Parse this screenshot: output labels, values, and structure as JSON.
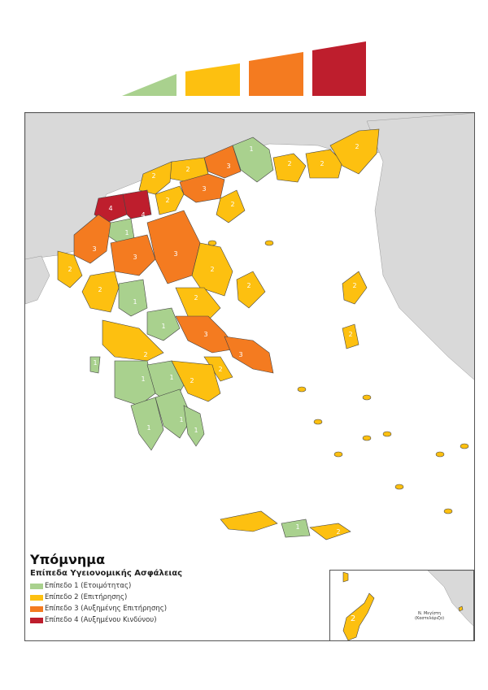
{
  "colors": {
    "level1": "#a9d18e",
    "level2": "#fdc010",
    "level3": "#f47b20",
    "level4": "#be1e2d",
    "land_outside": "#d9d9d9",
    "sea": "#ffffff"
  },
  "legend": {
    "title": "Υπόμνημα",
    "subtitle": "Επίπεδα Υγειονομικής Ασφάλειας",
    "items": [
      {
        "level": 1,
        "label": "Επίπεδο 1 (Ετοιμότητας)",
        "color": "#a9d18e"
      },
      {
        "level": 2,
        "label": "Επίπεδο 2 (Επιτήρησης)",
        "color": "#fdc010"
      },
      {
        "level": 3,
        "label": "Επίπεδο 3 (Αυξημένης Επιτήρησης)",
        "color": "#f47b20"
      },
      {
        "level": 4,
        "label": "Επίπεδο 4 (Αυξημένου Κινδύνου)",
        "color": "#be1e2d"
      }
    ]
  },
  "inset": {
    "label_line1": "Ν. Μεγίστη",
    "label_line2": "(Καστελόριζο)",
    "rhodes_level": "2"
  },
  "regions": [
    {
      "level": "1",
      "color": "#a9d18e"
    },
    {
      "level": "2",
      "color": "#fdc010"
    },
    {
      "level": "2",
      "color": "#fdc010"
    },
    {
      "level": "2",
      "color": "#fdc010"
    },
    {
      "level": "3",
      "color": "#f47b20"
    },
    {
      "level": "2",
      "color": "#fdc010"
    },
    {
      "level": "2",
      "color": "#fdc010"
    },
    {
      "level": "3",
      "color": "#f47b20"
    },
    {
      "level": "2",
      "color": "#fdc010"
    },
    {
      "level": "4",
      "color": "#be1e2d"
    },
    {
      "level": "4",
      "color": "#be1e2d"
    },
    {
      "level": "2",
      "color": "#fdc010"
    },
    {
      "level": "1",
      "color": "#a9d18e"
    },
    {
      "level": "3",
      "color": "#f47b20"
    },
    {
      "level": "3",
      "color": "#f47b20"
    },
    {
      "level": "3",
      "color": "#f47b20"
    },
    {
      "level": "2",
      "color": "#fdc010"
    },
    {
      "level": "2",
      "color": "#fdc010"
    },
    {
      "level": "1",
      "color": "#a9d18e"
    },
    {
      "level": "2",
      "color": "#fdc010"
    },
    {
      "level": "1",
      "color": "#a9d18e"
    },
    {
      "level": "2",
      "color": "#fdc010"
    },
    {
      "level": "3",
      "color": "#f47b20"
    },
    {
      "level": "3",
      "color": "#f47b20"
    },
    {
      "level": "2",
      "color": "#fdc010"
    },
    {
      "level": "2",
      "color": "#fdc010"
    },
    {
      "level": "1",
      "color": "#a9d18e"
    },
    {
      "level": "1",
      "color": "#a9d18e"
    },
    {
      "level": "1",
      "color": "#a9d18e"
    },
    {
      "level": "2",
      "color": "#fdc010"
    },
    {
      "level": "1",
      "color": "#a9d18e"
    },
    {
      "level": "1",
      "color": "#a9d18e"
    },
    {
      "level": "2",
      "color": "#fdc010"
    },
    {
      "level": "1",
      "color": "#a9d18e"
    },
    {
      "level": "2",
      "color": "#fdc010"
    },
    {
      "level": "2",
      "color": "#fdc010"
    },
    {
      "level": "2",
      "color": "#fdc010"
    },
    {
      "level": "1",
      "color": "#a9d18e"
    },
    {
      "level": "2",
      "color": "#fdc010"
    }
  ]
}
